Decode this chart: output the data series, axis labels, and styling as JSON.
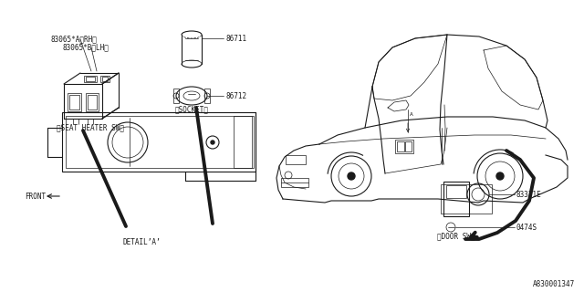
{
  "bg_color": "#ffffff",
  "lc": "#1a1a1a",
  "lw_thin": 0.5,
  "lw_med": 0.8,
  "lw_thick": 2.8,
  "fs": 5.5,
  "fs_small": 4.8,
  "ff": "monospace",
  "labels": {
    "part_A_RH": "83065*A〈RH〉",
    "part_B_LH": "83065*B〈LH〉",
    "seat_heater": "〈SEAT HEATER SW〉",
    "part_86711": "86711",
    "part_86712": "86712",
    "socket": "〈SOCKET〉",
    "detail_a": "DETAIL’A’",
    "front": "FRONT",
    "part_83331E": "83331E",
    "part_0474S": "0474S",
    "door_sw": "〈DOOR SW〉",
    "drawing_no": "A830001347"
  }
}
